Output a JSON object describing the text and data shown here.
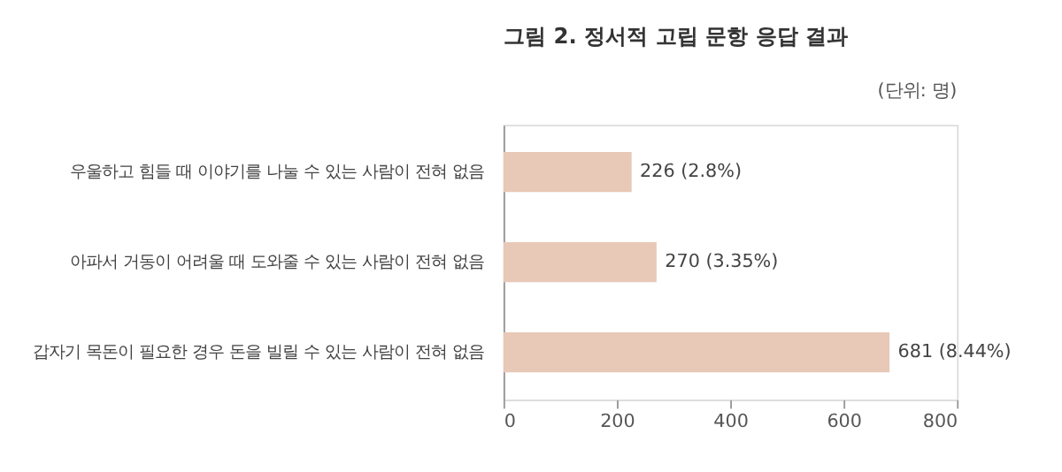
{
  "chart_data": {
    "type": "bar",
    "orientation": "horizontal",
    "title": "그림 2. 정서적 고립 문항 응답 결과",
    "annotations": [
      "(단위: 명)"
    ],
    "categories": [
      "우울하고 힘들 때 이야기를 나눌 수 있는 사람이 전혀 없음",
      "아파서 거동이 어려울 때 도와줄 수 있는 사람이 전혀 없음",
      "갑자기 목돈이 필요한 경우 돈을 빌릴 수 있는 사람이 전혀 없음"
    ],
    "values": [
      226,
      270,
      681
    ],
    "value_labels": [
      "226 (2.8%)",
      "270 (3.35%)",
      "681 (8.44%)"
    ],
    "color": "#e8c8b6",
    "xlim": [
      0,
      800
    ],
    "xticks": [
      0,
      200,
      400,
      600,
      800
    ],
    "grid": false
  }
}
